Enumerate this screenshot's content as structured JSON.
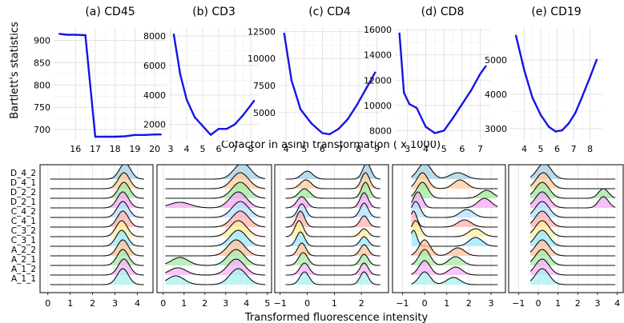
{
  "figure": {
    "top_ylabel": "Bartlett's statistics",
    "top_xlabel": "Cofactor in asinh transformation ( x 1000)",
    "bottom_xlabel": "Transformed fluorescence intensity"
  },
  "chart_data": [
    {
      "type": "line",
      "panel": "top",
      "title": "(a) CD45",
      "color": "#1515e6",
      "x": [
        15.2,
        15.6,
        16.0,
        16.5,
        17.0,
        17.5,
        18.0,
        18.5,
        19.0,
        19.5,
        20.0,
        20.3
      ],
      "y": [
        915,
        913,
        913,
        912,
        684,
        684,
        684,
        685,
        688,
        688,
        689,
        689
      ],
      "xlim": [
        14.9,
        20.6
      ],
      "ylim": [
        675,
        930
      ],
      "xticks": [
        16,
        17,
        18,
        19,
        20
      ],
      "yticks": [
        700,
        750,
        800,
        850,
        900
      ]
    },
    {
      "type": "line",
      "panel": "top",
      "title": "(b) CD3",
      "color": "#1515e6",
      "x": [
        3.2,
        3.6,
        4.0,
        4.5,
        5.0,
        5.5,
        6.0,
        6.5,
        7.0,
        7.5,
        8.0,
        8.2
      ],
      "y": [
        8100,
        5400,
        3700,
        2500,
        1900,
        1300,
        1700,
        1700,
        2000,
        2600,
        3300,
        3600
      ],
      "xlim": [
        2.9,
        8.5
      ],
      "ylim": [
        900,
        8600
      ],
      "xticks": [
        3,
        4,
        5,
        6,
        7,
        8
      ],
      "yticks": [
        2000,
        4000,
        6000,
        8000
      ]
    },
    {
      "type": "line",
      "panel": "top",
      "title": "(c) CD4",
      "color": "#1515e6",
      "x": [
        3.9,
        4.3,
        4.8,
        5.4,
        6.0,
        6.4,
        6.9,
        7.4,
        7.9,
        8.4,
        8.9
      ],
      "y": [
        12300,
        8000,
        5300,
        4000,
        3100,
        3000,
        3500,
        4400,
        5700,
        7200,
        8700
      ],
      "xlim": [
        3.6,
        9.2
      ],
      "ylim": [
        2400,
        12900
      ],
      "xticks": [
        4,
        5,
        6,
        7,
        8,
        9
      ],
      "yticks": [
        5000,
        7500,
        10000,
        12500
      ]
    },
    {
      "type": "line",
      "panel": "top",
      "title": "(d) CD8",
      "color": "#1515e6",
      "x": [
        2.55,
        2.8,
        3.1,
        3.5,
        4.0,
        4.5,
        5.0,
        5.5,
        6.0,
        6.5,
        7.0,
        7.3
      ],
      "y": [
        15700,
        11000,
        10100,
        9800,
        8300,
        7800,
        8000,
        9000,
        10100,
        11200,
        12500,
        13100
      ],
      "xlim": [
        2.3,
        7.55
      ],
      "ylim": [
        7200,
        16200
      ],
      "xticks": [
        3,
        4,
        5,
        6,
        7
      ],
      "yticks": [
        8000,
        10000,
        12000,
        14000,
        16000
      ]
    },
    {
      "type": "line",
      "panel": "top",
      "title": "(e) CD19",
      "color": "#1515e6",
      "x": [
        3.5,
        4.0,
        4.5,
        5.0,
        5.5,
        5.9,
        6.3,
        6.7,
        7.1,
        7.5,
        8.0,
        8.4
      ],
      "y": [
        5700,
        4700,
        3900,
        3400,
        3050,
        2920,
        2950,
        3150,
        3450,
        3900,
        4500,
        5000
      ],
      "xlim": [
        3.15,
        8.75
      ],
      "ylim": [
        2650,
        5950
      ],
      "xticks": [
        4,
        5,
        6,
        7,
        8
      ],
      "yticks": [
        3000,
        4000,
        5000
      ]
    },
    {
      "type": "ridgeline",
      "panel": "bottom",
      "sample_labels": [
        "D_4_2",
        "D_4_1",
        "D_2_2",
        "D_2_1",
        "C_4_2",
        "C_4_1",
        "C_3_2",
        "C_3_1",
        "A_2_2",
        "A_2_1",
        "A_1_2",
        "A_1_1"
      ],
      "panels": [
        {
          "marker": "CD45",
          "xlim": [
            -0.35,
            4.7
          ],
          "xticks": [
            0,
            1,
            2,
            3,
            4
          ],
          "ranges": [
            [
              0.1,
              4.3
            ],
            [
              0.1,
              4.3
            ],
            [
              0.1,
              4.3
            ],
            [
              0.1,
              4.3
            ],
            [
              0.1,
              4.3
            ],
            [
              0.1,
              4.3
            ],
            [
              0.1,
              4.3
            ],
            [
              0.1,
              4.3
            ],
            [
              0.1,
              4.3
            ],
            [
              0.1,
              4.3
            ],
            [
              0.1,
              4.3
            ],
            [
              0.1,
              4.3
            ]
          ],
          "peaks": [
            [
              [
                3.45,
                0.25,
                1
              ]
            ],
            [
              [
                3.4,
                0.25,
                1
              ]
            ],
            [
              [
                3.4,
                0.25,
                1
              ]
            ],
            [
              [
                3.35,
                0.25,
                1
              ]
            ],
            [
              [
                3.35,
                0.25,
                1
              ]
            ],
            [
              [
                3.35,
                0.25,
                1
              ]
            ],
            [
              [
                3.3,
                0.25,
                1
              ]
            ],
            [
              [
                3.3,
                0.25,
                1
              ]
            ],
            [
              [
                3.35,
                0.25,
                1
              ]
            ],
            [
              [
                3.35,
                0.25,
                1
              ]
            ],
            [
              [
                3.4,
                0.25,
                1
              ]
            ],
            [
              [
                3.35,
                0.25,
                1
              ]
            ]
          ]
        },
        {
          "marker": "CD3",
          "xlim": [
            -0.3,
            5.2
          ],
          "xticks": [
            0,
            1,
            2,
            3,
            4,
            5
          ],
          "ranges": [
            [
              0.1,
              4.9
            ],
            [
              0.1,
              4.9
            ],
            [
              0.1,
              4.9
            ],
            [
              0.1,
              4.9
            ],
            [
              0.1,
              4.9
            ],
            [
              0.1,
              4.9
            ],
            [
              0.1,
              4.9
            ],
            [
              0.1,
              4.9
            ],
            [
              0.1,
              4.9
            ],
            [
              0.1,
              4.9
            ],
            [
              0.1,
              4.9
            ],
            [
              0.1,
              4.9
            ]
          ],
          "peaks": [
            [
              [
                3.8,
                0.4,
                1
              ]
            ],
            [
              [
                3.7,
                0.4,
                1
              ]
            ],
            [
              [
                3.7,
                0.4,
                1
              ]
            ],
            [
              [
                0.8,
                0.5,
                0.35
              ],
              [
                3.6,
                0.4,
                1
              ]
            ],
            [
              [
                3.7,
                0.4,
                1
              ]
            ],
            [
              [
                3.7,
                0.4,
                1
              ]
            ],
            [
              [
                3.6,
                0.4,
                1
              ]
            ],
            [
              [
                3.6,
                0.4,
                1
              ]
            ],
            [
              [
                3.5,
                0.4,
                1
              ]
            ],
            [
              [
                0.8,
                0.4,
                0.5
              ],
              [
                3.5,
                0.4,
                1
              ]
            ],
            [
              [
                0.7,
                0.4,
                0.45
              ],
              [
                3.5,
                0.4,
                1
              ]
            ],
            [
              [
                0.6,
                0.4,
                0.55
              ],
              [
                3.6,
                0.4,
                1
              ]
            ]
          ]
        },
        {
          "marker": "CD4",
          "xlim": [
            -1.2,
            3.0
          ],
          "xticks": [
            -1,
            0,
            1,
            2
          ],
          "ranges": [
            [
              -0.8,
              2.7
            ],
            [
              -0.8,
              2.7
            ],
            [
              -0.8,
              2.7
            ],
            [
              -0.8,
              2.7
            ],
            [
              -0.8,
              2.7
            ],
            [
              -0.8,
              2.7
            ],
            [
              -0.8,
              2.7
            ],
            [
              -0.8,
              2.7
            ],
            [
              -0.8,
              2.7
            ],
            [
              -0.8,
              2.7
            ],
            [
              -0.8,
              2.7
            ],
            [
              -0.8,
              2.7
            ]
          ],
          "peaks": [
            [
              [
                0.0,
                0.2,
                0.5
              ],
              [
                2.2,
                0.15,
                1
              ]
            ],
            [
              [
                -0.05,
                0.2,
                0.55
              ],
              [
                2.15,
                0.15,
                1
              ]
            ],
            [
              [
                -0.1,
                0.2,
                0.6
              ],
              [
                2.15,
                0.15,
                1
              ]
            ],
            [
              [
                -0.2,
                0.18,
                0.7
              ],
              [
                2.1,
                0.15,
                0.95
              ]
            ],
            [
              [
                -0.2,
                0.15,
                0.85
              ],
              [
                2.1,
                0.15,
                0.9
              ]
            ],
            [
              [
                -0.25,
                0.15,
                1
              ],
              [
                2.1,
                0.15,
                0.7
              ]
            ],
            [
              [
                -0.3,
                0.15,
                1
              ],
              [
                2.1,
                0.15,
                0.5
              ]
            ],
            [
              [
                -0.25,
                0.15,
                0.9
              ],
              [
                2.1,
                0.15,
                0.6
              ]
            ],
            [
              [
                -0.2,
                0.15,
                0.8
              ],
              [
                2.1,
                0.15,
                0.7
              ]
            ],
            [
              [
                -0.15,
                0.17,
                0.8
              ],
              [
                2.1,
                0.15,
                0.7
              ]
            ],
            [
              [
                -0.1,
                0.17,
                0.75
              ],
              [
                2.1,
                0.15,
                0.75
              ]
            ],
            [
              [
                -0.1,
                0.17,
                0.8
              ],
              [
                2.1,
                0.15,
                0.8
              ]
            ]
          ]
        },
        {
          "marker": "CD8",
          "xlim": [
            -1.45,
            3.65
          ],
          "xticks": [
            -1,
            0,
            1,
            2,
            3
          ],
          "ranges": [
            [
              -0.6,
              3.3
            ],
            [
              -0.6,
              3.3
            ],
            [
              -0.6,
              3.3
            ],
            [
              -0.6,
              3.3
            ],
            [
              -0.6,
              3.3
            ],
            [
              -0.6,
              3.3
            ],
            [
              -0.6,
              3.3
            ],
            [
              -0.6,
              3.3
            ],
            [
              -0.6,
              3.3
            ],
            [
              -0.6,
              3.3
            ],
            [
              -0.6,
              3.3
            ],
            [
              -0.6,
              3.3
            ]
          ],
          "peaks": [
            [
              [
                0.0,
                0.3,
                1
              ],
              [
                1.5,
                0.35,
                0.4
              ]
            ],
            [
              [
                -0.1,
                0.25,
                1
              ],
              [
                1.6,
                0.3,
                0.55
              ]
            ],
            [
              [
                -0.1,
                0.25,
                1
              ],
              [
                2.8,
                0.3,
                0.5
              ]
            ],
            [
              [
                -0.3,
                0.2,
                1
              ],
              [
                2.7,
                0.3,
                0.6
              ]
            ],
            [
              [
                -0.4,
                0.2,
                1
              ],
              [
                1.9,
                0.3,
                0.5
              ]
            ],
            [
              [
                -0.5,
                0.15,
                1
              ],
              [
                1.8,
                0.3,
                0.45
              ]
            ],
            [
              [
                -0.4,
                0.2,
                1
              ],
              [
                2.3,
                0.3,
                0.5
              ]
            ],
            [
              [
                -0.5,
                0.15,
                1
              ],
              [
                2.3,
                0.3,
                0.55
              ]
            ],
            [
              [
                0.0,
                0.25,
                1
              ],
              [
                1.5,
                0.3,
                0.5
              ]
            ],
            [
              [
                0.0,
                0.25,
                1
              ],
              [
                1.4,
                0.3,
                0.55
              ]
            ],
            [
              [
                0.0,
                0.25,
                0.9
              ],
              [
                1.4,
                0.3,
                0.5
              ]
            ],
            [
              [
                0.0,
                0.25,
                0.8
              ],
              [
                1.3,
                0.3,
                0.45
              ]
            ]
          ]
        },
        {
          "marker": "CD19",
          "xlim": [
            -1.5,
            4.3
          ],
          "xticks": [
            -1,
            0,
            1,
            2,
            3,
            4
          ],
          "ranges": [
            [
              -0.4,
              3.9
            ],
            [
              -0.4,
              3.9
            ],
            [
              -0.4,
              3.9
            ],
            [
              -0.4,
              3.9
            ],
            [
              -0.4,
              3.9
            ],
            [
              -0.4,
              3.9
            ],
            [
              -0.4,
              3.9
            ],
            [
              -0.4,
              3.9
            ],
            [
              -0.4,
              3.9
            ],
            [
              -0.4,
              3.9
            ],
            [
              -0.4,
              3.9
            ],
            [
              -0.4,
              3.9
            ]
          ],
          "peaks": [
            [
              [
                0.3,
                0.35,
                1
              ]
            ],
            [
              [
                0.25,
                0.35,
                1
              ]
            ],
            [
              [
                0.2,
                0.35,
                1
              ],
              [
                3.3,
                0.25,
                0.6
              ]
            ],
            [
              [
                0.2,
                0.35,
                1
              ],
              [
                3.3,
                0.25,
                0.7
              ]
            ],
            [
              [
                0.2,
                0.35,
                1
              ]
            ],
            [
              [
                0.2,
                0.35,
                1
              ]
            ],
            [
              [
                0.2,
                0.35,
                1
              ]
            ],
            [
              [
                0.2,
                0.35,
                1
              ]
            ],
            [
              [
                0.2,
                0.35,
                1
              ]
            ],
            [
              [
                0.2,
                0.35,
                1
              ]
            ],
            [
              [
                0.2,
                0.35,
                1
              ]
            ],
            [
              [
                0.2,
                0.35,
                1
              ]
            ]
          ]
        }
      ]
    }
  ]
}
